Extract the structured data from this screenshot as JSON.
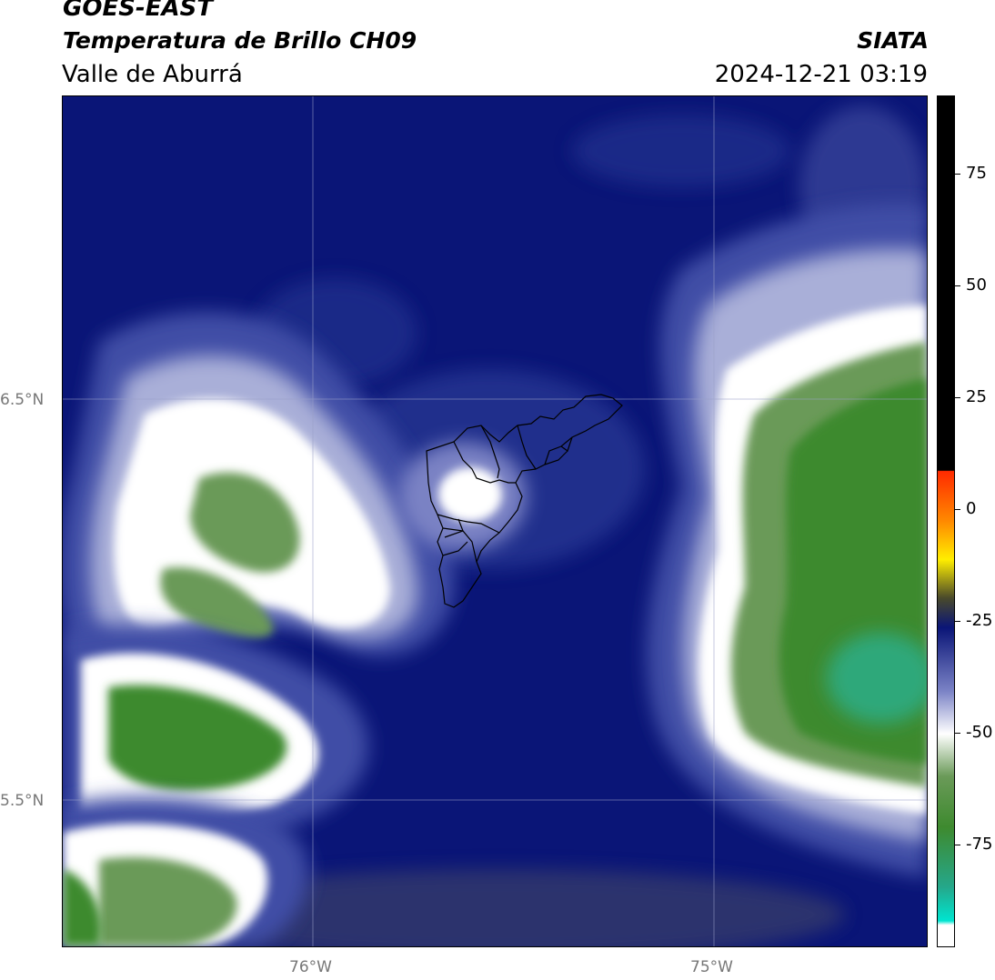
{
  "header": {
    "satellite": "GOES-EAST",
    "product": "Temperatura de Brillo CH09",
    "region": "Valle de Aburrá",
    "agency": "SIATA",
    "timestamp": "2024-12-21 03:19"
  },
  "map": {
    "lat_labels": [
      {
        "text": "6.5°N",
        "value": 6.5
      },
      {
        "text": "5.5°N",
        "value": 5.5
      }
    ],
    "lon_labels": [
      {
        "text": "76°W",
        "value": -76
      },
      {
        "text": "75°W",
        "value": -75
      }
    ]
  },
  "colorbar": {
    "ticks": [
      {
        "text": "75",
        "value": 75
      },
      {
        "text": "50",
        "value": 50
      },
      {
        "text": "25",
        "value": 25
      },
      {
        "text": "0",
        "value": 0
      },
      {
        "text": "-25",
        "value": -25
      },
      {
        "text": "-50",
        "value": -50
      },
      {
        "text": "-75",
        "value": -75
      }
    ],
    "colors": {
      "warm_black": "#000000",
      "red": "#ff2a00",
      "yellow": "#ffee00",
      "navy": "#0a1577",
      "white": "#ffffff",
      "green": "#3a8c2c",
      "cyan": "#00e5d0"
    }
  }
}
